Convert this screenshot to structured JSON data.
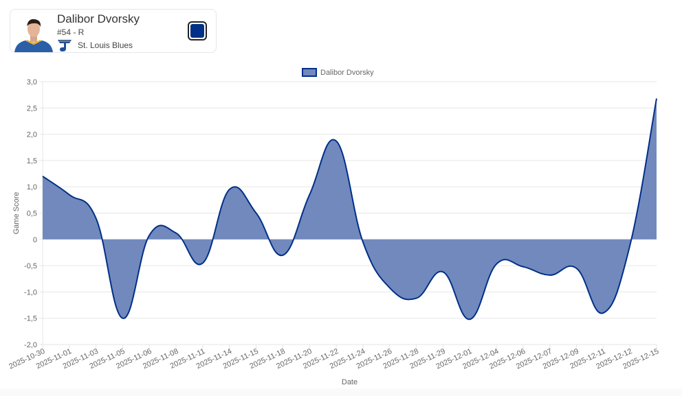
{
  "player": {
    "name": "Dalibor Dvorsky",
    "meta": "#54 - R",
    "team": "St. Louis Blues",
    "avatar_icon": "player-headshot",
    "team_logo_icon": "blues-note-logo",
    "color_swatch": "#003087"
  },
  "colors": {
    "line": "#002f87",
    "fill": "#7189bd",
    "grid": "#e6e6e6",
    "tick_text": "#666666"
  },
  "chart_data": {
    "type": "area",
    "title": "",
    "xlabel": "Date",
    "ylabel": "Game Score",
    "ylim": [
      -2.0,
      3.0
    ],
    "y_ticks": [
      "3,0",
      "2,5",
      "2,0",
      "1,5",
      "1,0",
      "0,5",
      "0",
      "-0,5",
      "-1,0",
      "-1,5",
      "-2,0"
    ],
    "y_tick_values": [
      3.0,
      2.5,
      2.0,
      1.5,
      1.0,
      0.5,
      0,
      -0.5,
      -1.0,
      -1.5,
      -2.0
    ],
    "grid": true,
    "legend_position": "top",
    "categories": [
      "2025-10-30",
      "2025-11-01",
      "2025-11-03",
      "2025-11-05",
      "2025-11-06",
      "2025-11-08",
      "2025-11-11",
      "2025-11-14",
      "2025-11-15",
      "2025-11-18",
      "2025-11-20",
      "2025-11-22",
      "2025-11-24",
      "2025-11-26",
      "2025-11-28",
      "2025-11-29",
      "2025-12-01",
      "2025-12-04",
      "2025-12-06",
      "2025-12-07",
      "2025-12-09",
      "2025-12-11",
      "2025-12-12",
      "2025-12-15"
    ],
    "series": [
      {
        "name": "Dalibor Dvorsky",
        "values": [
          1.2,
          0.85,
          0.4,
          -1.5,
          0.08,
          0.12,
          -0.45,
          0.95,
          0.5,
          -0.3,
          0.85,
          1.87,
          -0.05,
          -0.92,
          -1.12,
          -0.62,
          -1.52,
          -0.47,
          -0.52,
          -0.68,
          -0.55,
          -1.4,
          -0.12,
          2.68
        ]
      }
    ]
  }
}
